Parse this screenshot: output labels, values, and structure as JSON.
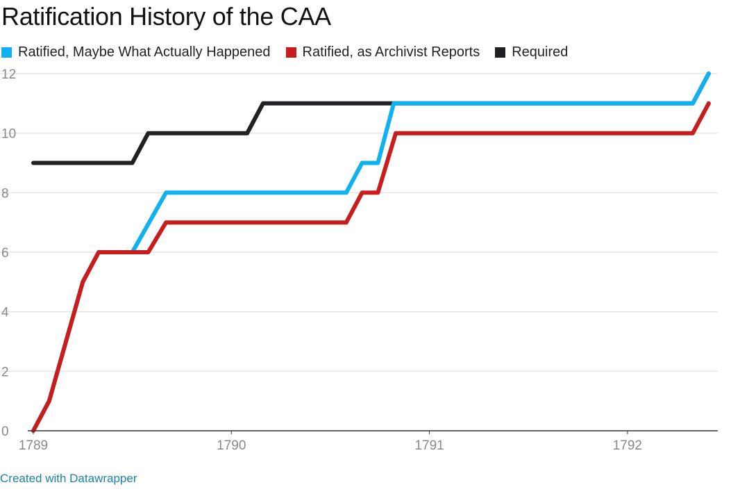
{
  "chart_data": {
    "type": "line",
    "title": "Ratification History of the CAA",
    "xlabel": "",
    "ylabel": "",
    "xlim": [
      1789,
      1792.4
    ],
    "ylim": [
      0,
      12
    ],
    "yticks": [
      0,
      2,
      4,
      6,
      8,
      10,
      12
    ],
    "xticks": [
      {
        "value": 1789,
        "label": "1789"
      },
      {
        "value": 1790,
        "label": "1790"
      },
      {
        "value": 1791,
        "label": "1791"
      },
      {
        "value": 1792,
        "label": "1792"
      }
    ],
    "grid": true,
    "legend_position": "top-left",
    "series": [
      {
        "name": "Required",
        "color": "#202124",
        "points": [
          [
            1789.0,
            9
          ],
          [
            1789.5,
            9
          ],
          [
            1789.58,
            10
          ],
          [
            1790.08,
            10
          ],
          [
            1790.16,
            11
          ],
          [
            1792.33,
            11
          ],
          [
            1792.41,
            12
          ]
        ]
      },
      {
        "name": "Ratified, Maybe What Actually Happened",
        "color": "#0fb1ef",
        "points": [
          [
            1789.0,
            0
          ],
          [
            1789.08,
            1
          ],
          [
            1789.25,
            5
          ],
          [
            1789.33,
            6
          ],
          [
            1789.5,
            6
          ],
          [
            1789.67,
            8
          ],
          [
            1790.58,
            8
          ],
          [
            1790.66,
            9
          ],
          [
            1790.74,
            9
          ],
          [
            1790.82,
            11
          ],
          [
            1792.33,
            11
          ],
          [
            1792.41,
            12
          ]
        ]
      },
      {
        "name": "Ratified, as Archivist Reports",
        "color": "#c71e1d",
        "points": [
          [
            1789.0,
            0
          ],
          [
            1789.08,
            1
          ],
          [
            1789.25,
            5
          ],
          [
            1789.33,
            6
          ],
          [
            1789.58,
            6
          ],
          [
            1789.67,
            7
          ],
          [
            1790.58,
            7
          ],
          [
            1790.66,
            8
          ],
          [
            1790.74,
            8
          ],
          [
            1790.83,
            10
          ],
          [
            1792.33,
            10
          ],
          [
            1792.41,
            11
          ]
        ]
      }
    ],
    "legend_order": [
      "Ratified, Maybe What Actually Happened",
      "Ratified, as Archivist Reports",
      "Required"
    ]
  },
  "footer": {
    "text": "Created with Datawrapper",
    "color": "#1d81a2"
  },
  "colors": {
    "grid": "#e0e0e0",
    "axis": "#333333",
    "tick_text": "#888888"
  }
}
